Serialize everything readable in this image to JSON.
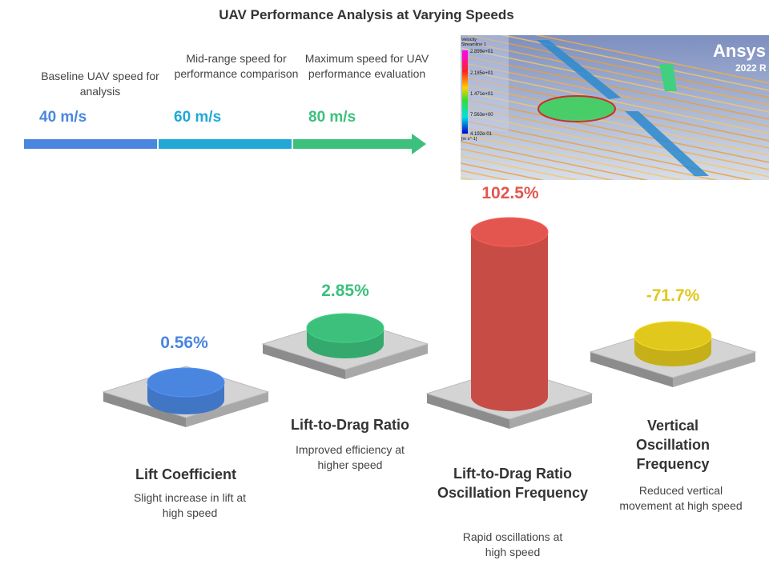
{
  "title": "UAV Performance Analysis at Varying Speeds",
  "timeline": [
    {
      "speed": "40 m/s",
      "description": "Baseline UAV speed for analysis",
      "color": "#4a86e0"
    },
    {
      "speed": "60 m/s",
      "description": "Mid-range speed for performance comparison",
      "color": "#22a8d6"
    },
    {
      "speed": "80 m/s",
      "description": "Maximum speed for UAV performance evaluation",
      "color": "#3cc07c"
    }
  ],
  "simulation_image": {
    "brand": "Ansys",
    "version": "2022 R",
    "legend_title": "Velocity",
    "legend_subtitle": "Streamline 1",
    "legend_ticks": [
      "2.899e+01",
      "2.185e+01",
      "1.471e+01",
      "7.563e+00",
      "4.192e-01"
    ],
    "legend_unit": "[m s^-1]"
  },
  "metrics": [
    {
      "value": "0.56%",
      "title": "Lift Coefficient",
      "description": "Slight increase in lift at high speed",
      "color": "#4a86e0"
    },
    {
      "value": "2.85%",
      "title": "Lift-to-Drag Ratio",
      "description": "Improved efficiency at higher speed",
      "color": "#3cc07c"
    },
    {
      "value": "102.5%",
      "title": "Lift-to-Drag Ratio Oscillation Frequency",
      "description": "Rapid oscillations at high speed",
      "color": "#e35650"
    },
    {
      "value": "-71.7%",
      "title": "Vertical Oscillation Frequency",
      "description": "Reduced vertical movement at high speed",
      "color": "#e0c81c"
    }
  ]
}
